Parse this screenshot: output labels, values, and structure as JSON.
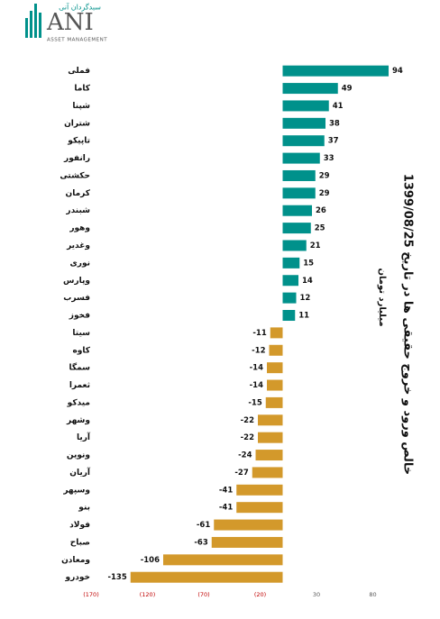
{
  "logo": {
    "name": "ANI",
    "persian": "سبدگردان آنی",
    "tagline": "ASSET MANAGEMENT"
  },
  "chart_data": {
    "type": "hbar",
    "title": "خالص ورود و خروج حقیقی ها در تاریخ 1399/08/25",
    "subtitle": "میلیارد تومان",
    "categories": [
      "فملی",
      "کاما",
      "شپنا",
      "شتران",
      "تاپیکو",
      "رانفور",
      "حکشتی",
      "کرمان",
      "شبندر",
      "وهور",
      "وغدیر",
      "نوری",
      "وپارس",
      "فسرب",
      "فخوز",
      "سیتا",
      "کاوه",
      "سمگا",
      "ثعمرا",
      "میدکو",
      "وشهر",
      "آریا",
      "ونوین",
      "آریان",
      "وسپهر",
      "بنو",
      "فولاد",
      "صباح",
      "ومعادن",
      "خودرو"
    ],
    "values": [
      94,
      49,
      41,
      38,
      37,
      33,
      29,
      29,
      26,
      25,
      21,
      15,
      14,
      12,
      11,
      -11,
      -12,
      -14,
      -14,
      -15,
      -22,
      -22,
      -24,
      -27,
      -41,
      -41,
      -61,
      -63,
      -106,
      -135
    ],
    "positive_color": "#00918b",
    "negative_color": "#d3992b",
    "xlim": [
      -170,
      130
    ],
    "xticks": [
      {
        "value": -170,
        "label": "(170)"
      },
      {
        "value": -120,
        "label": "(120)"
      },
      {
        "value": -70,
        "label": "(70)"
      },
      {
        "value": -20,
        "label": "(20)"
      },
      30,
      80
    ],
    "negative_tick_color": "#c00000",
    "tick_color": "#595959"
  }
}
